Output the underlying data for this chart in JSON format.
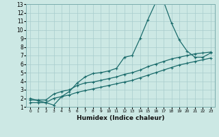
{
  "xlabel": "Humidex (Indice chaleur)",
  "xlim": [
    -0.5,
    23.5
  ],
  "ylim": [
    1,
    13
  ],
  "xticks": [
    0,
    1,
    2,
    3,
    4,
    5,
    6,
    7,
    8,
    9,
    10,
    11,
    12,
    13,
    14,
    15,
    16,
    17,
    18,
    19,
    20,
    21,
    22,
    23
  ],
  "yticks": [
    1,
    2,
    3,
    4,
    5,
    6,
    7,
    8,
    9,
    10,
    11,
    12,
    13
  ],
  "background_color": "#cce8e4",
  "grid_color": "#a8cccc",
  "line_color": "#1a6b6b",
  "line1_x": [
    0,
    1,
    2,
    3,
    4,
    5,
    6,
    7,
    8,
    9,
    10,
    11,
    12,
    13,
    14,
    15,
    16,
    17,
    18,
    19,
    20,
    21,
    22,
    23
  ],
  "line1_y": [
    2.0,
    1.7,
    1.5,
    1.2,
    2.2,
    2.8,
    3.8,
    4.5,
    4.9,
    5.0,
    5.2,
    5.5,
    6.8,
    7.0,
    9.0,
    11.2,
    13.2,
    13.3,
    10.8,
    8.8,
    7.5,
    6.8,
    6.8,
    7.3
  ],
  "line2_x": [
    0,
    1,
    2,
    3,
    4,
    5,
    6,
    7,
    8,
    9,
    10,
    11,
    12,
    13,
    14,
    15,
    16,
    17,
    18,
    19,
    20,
    21,
    22,
    23
  ],
  "line2_y": [
    1.8,
    1.8,
    1.8,
    2.5,
    2.8,
    3.0,
    3.5,
    3.8,
    3.9,
    4.1,
    4.3,
    4.5,
    4.8,
    5.0,
    5.3,
    5.7,
    6.0,
    6.3,
    6.6,
    6.8,
    7.0,
    7.2,
    7.3,
    7.4
  ],
  "line3_x": [
    0,
    1,
    2,
    3,
    4,
    5,
    6,
    7,
    8,
    9,
    10,
    11,
    12,
    13,
    14,
    15,
    16,
    17,
    18,
    19,
    20,
    21,
    22,
    23
  ],
  "line3_y": [
    1.5,
    1.5,
    1.5,
    2.0,
    2.2,
    2.4,
    2.7,
    2.9,
    3.1,
    3.3,
    3.5,
    3.7,
    3.9,
    4.1,
    4.4,
    4.7,
    5.0,
    5.3,
    5.6,
    5.9,
    6.1,
    6.3,
    6.5,
    6.7
  ]
}
